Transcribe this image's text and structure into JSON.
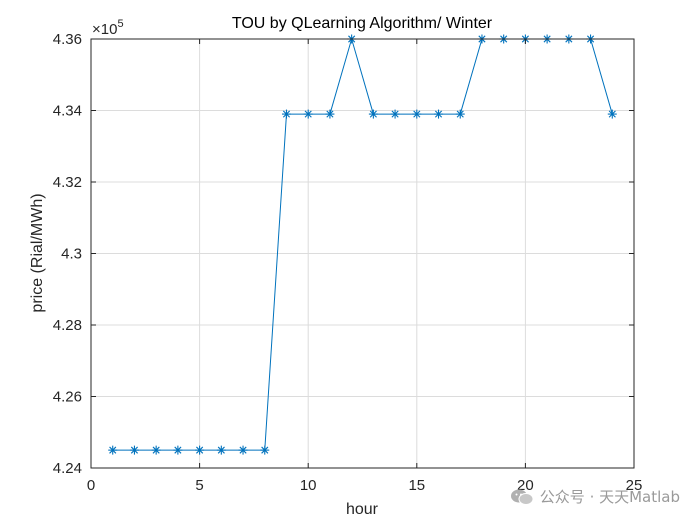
{
  "chart_data": {
    "type": "line",
    "title": "TOU by QLearning Algorithm/ Winter",
    "xlabel": "hour",
    "ylabel": "price (Rial/MWh)",
    "y_exponent_label": "×10",
    "y_exponent_power": "5",
    "xlim": [
      0,
      25
    ],
    "ylim": [
      4.24,
      4.36
    ],
    "xticks": [
      0,
      5,
      10,
      15,
      20,
      25
    ],
    "yticks": [
      4.24,
      4.26,
      4.28,
      4.3,
      4.32,
      4.34,
      4.36
    ],
    "ytick_labels": [
      "4.24",
      "4.26",
      "4.28",
      "4.3",
      "4.32",
      "4.34",
      "4.36"
    ],
    "grid": true,
    "marker": "asterisk",
    "line_color": "#0072BD",
    "series": [
      {
        "x": [
          1,
          2,
          3,
          4,
          5,
          6,
          7,
          8,
          9,
          10,
          11,
          12,
          13,
          14,
          15,
          16,
          17,
          18,
          19,
          20,
          21,
          22,
          23,
          24
        ],
        "y": [
          4.245,
          4.245,
          4.245,
          4.245,
          4.245,
          4.245,
          4.245,
          4.245,
          4.339,
          4.339,
          4.339,
          4.36,
          4.339,
          4.339,
          4.339,
          4.339,
          4.339,
          4.36,
          4.36,
          4.36,
          4.36,
          4.36,
          4.36,
          4.339
        ]
      }
    ]
  },
  "watermark": {
    "text": "公众号 · 天天Matlab",
    "icon": "wechat-icon"
  }
}
